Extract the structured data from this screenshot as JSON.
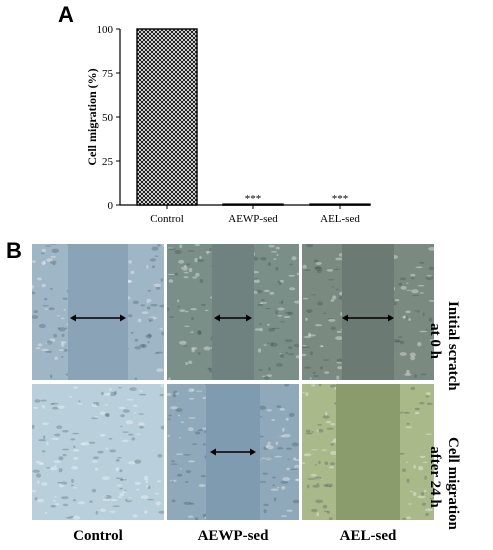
{
  "panels": {
    "a_label": "A",
    "b_label": "B"
  },
  "chart_data": {
    "type": "bar",
    "categories": [
      "Control",
      "AEWP-sed",
      "AEL-sed"
    ],
    "values": [
      100,
      0.5,
      0.5
    ],
    "annotations": [
      "",
      "***",
      "***"
    ],
    "title": "",
    "xlabel": "",
    "ylabel": "Cell migration (%)",
    "ylim": [
      0,
      100
    ],
    "yticks": [
      "0",
      "25",
      "50",
      "75",
      "100"
    ],
    "grid": false,
    "bar_fill": "crosshatch"
  },
  "micrographs": {
    "columns": [
      "Control",
      "AEWP-sed",
      "AEL-sed"
    ],
    "rows": [
      {
        "line1": "Initial scratch",
        "line2": "at 0 h"
      },
      {
        "line1": "Cell migration",
        "line2": "after 24 h"
      }
    ],
    "tones": [
      [
        "#9fb6c6",
        "#7a8f87",
        "#7a8a80"
      ],
      [
        "#b9d0dc",
        "#8fa9ba",
        "#a9b98a"
      ]
    ],
    "gap_tones": [
      [
        "#8aa3b6",
        "#6f827f",
        "#6b7b73"
      ],
      [
        "",
        "#7f9bb0",
        "#8a9c6c"
      ]
    ],
    "arrow_color": "#000000"
  }
}
